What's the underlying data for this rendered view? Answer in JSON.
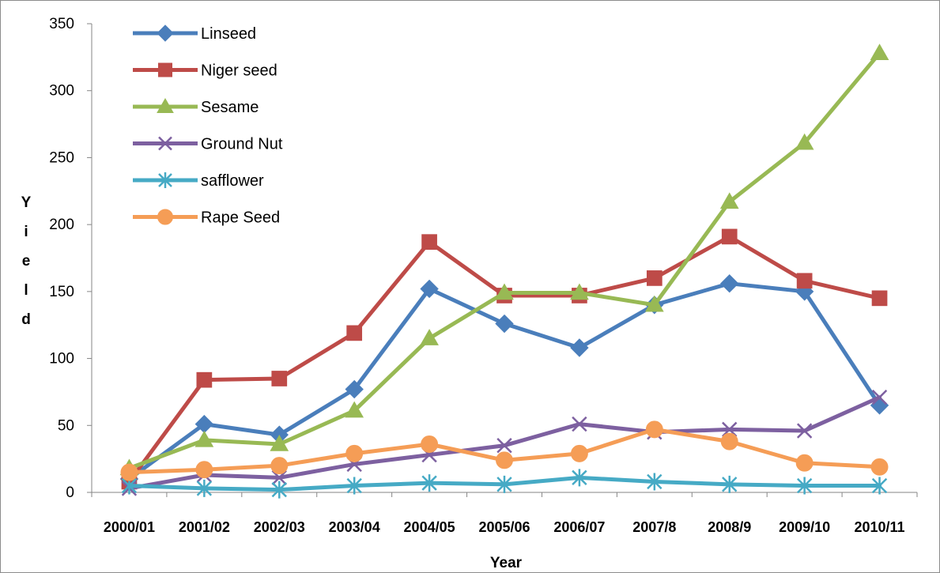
{
  "chart_data": {
    "type": "line",
    "title": "",
    "xlabel": "Year",
    "ylabel": "Yield",
    "ylim": [
      0,
      350
    ],
    "yticks": [
      0,
      50,
      100,
      150,
      200,
      250,
      300,
      350
    ],
    "grid": false,
    "legend_position": "top-left",
    "categories": [
      "2000/01",
      "2001/02",
      "2002/03",
      "2003/04",
      "2004/05",
      "2005/06",
      "2006/07",
      "2007/8",
      "2008/9",
      "2009/10",
      "2010/11"
    ],
    "series": [
      {
        "name": "Linseed",
        "color": "#4a7ebb",
        "marker": "diamond",
        "values": [
          10,
          51,
          43,
          77,
          152,
          126,
          108,
          140,
          156,
          150,
          65
        ]
      },
      {
        "name": "Niger seed",
        "color": "#be4b48",
        "marker": "square",
        "values": [
          8,
          84,
          85,
          119,
          187,
          147,
          147,
          160,
          191,
          158,
          145
        ]
      },
      {
        "name": "Sesame",
        "color": "#98b954",
        "marker": "triangle",
        "values": [
          18,
          39,
          36,
          61,
          115,
          149,
          149,
          140,
          217,
          261,
          328
        ]
      },
      {
        "name": "Ground Nut",
        "color": "#7d60a0",
        "marker": "x",
        "values": [
          3,
          13,
          11,
          21,
          28,
          35,
          51,
          45,
          47,
          46,
          71
        ]
      },
      {
        "name": "safflower",
        "color": "#46aac5",
        "marker": "asterisk",
        "values": [
          5,
          3,
          2,
          5,
          7,
          6,
          11,
          8,
          6,
          5,
          5
        ]
      },
      {
        "name": "Rape Seed",
        "color": "#f59d56",
        "marker": "circle",
        "values": [
          15,
          17,
          20,
          29,
          36,
          24,
          29,
          47,
          38,
          22,
          19
        ]
      }
    ]
  }
}
